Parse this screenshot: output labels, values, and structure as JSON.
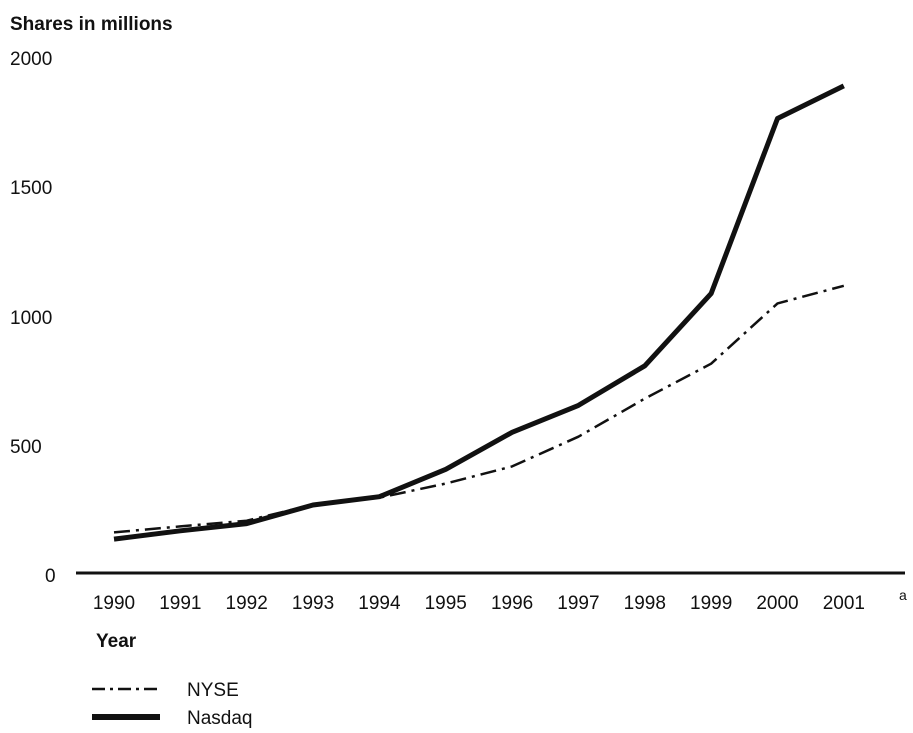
{
  "chart_data": {
    "type": "line",
    "ylabel": "Shares in millions",
    "xlabel": "Year",
    "categories": [
      "1990",
      "1991",
      "1992",
      "1993",
      "1994",
      "1995",
      "1996",
      "1997",
      "1998",
      "1999",
      "2000",
      "2001"
    ],
    "x_footnote_marker": "a",
    "ylim": [
      0,
      2000
    ],
    "yticks": [
      "0",
      "500",
      "1000",
      "1500",
      "2000"
    ],
    "grid": false,
    "legend_position": "bottom-left",
    "series": [
      {
        "name": "NYSE",
        "style": "dash-dot",
        "values": [
          157,
          180,
          202,
          264,
          291,
          346,
          412,
          527,
          674,
          809,
          1042,
          1110
        ]
      },
      {
        "name": "Nasdaq",
        "style": "solid",
        "values": [
          131,
          163,
          191,
          263,
          295,
          401,
          544,
          648,
          801,
          1080,
          1757,
          1883
        ]
      }
    ]
  },
  "colors": {
    "line": "#111111",
    "background": "#ffffff"
  }
}
